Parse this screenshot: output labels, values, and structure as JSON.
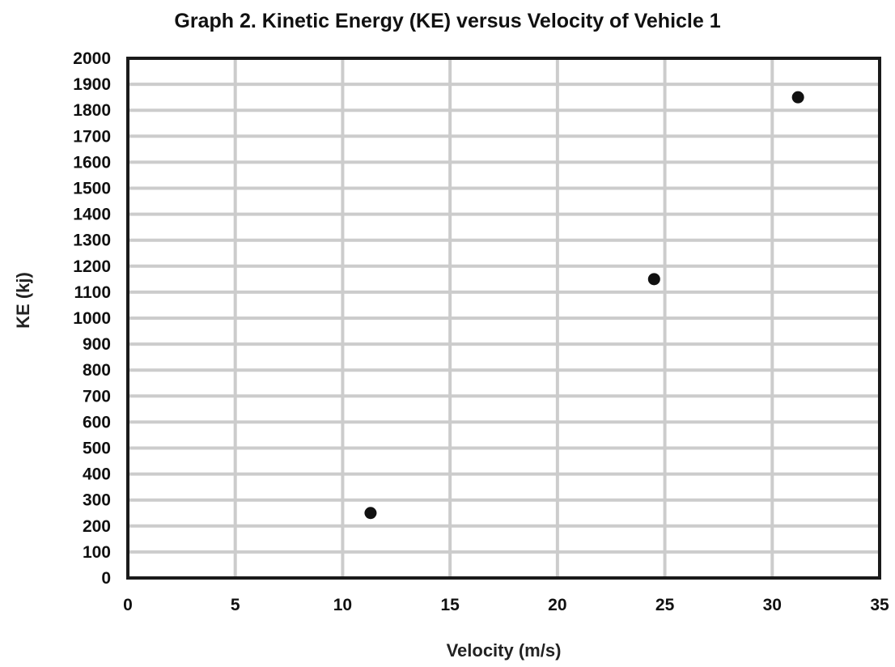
{
  "chart_data": {
    "type": "scatter",
    "title": "Graph 2. Kinetic Energy (KE) versus Velocity of Vehicle 1",
    "xlabel": "Velocity (m/s)",
    "ylabel": "KE (kj)",
    "xlim": [
      0,
      35
    ],
    "ylim": [
      0,
      2000
    ],
    "x_ticks": [
      0,
      5,
      10,
      15,
      20,
      25,
      30,
      35
    ],
    "y_ticks": [
      0,
      100,
      200,
      300,
      400,
      500,
      600,
      700,
      800,
      900,
      1000,
      1100,
      1200,
      1300,
      1400,
      1500,
      1600,
      1700,
      1800,
      1900,
      2000
    ],
    "grid": true,
    "points": [
      {
        "x": 11.3,
        "y": 250
      },
      {
        "x": 24.5,
        "y": 1150
      },
      {
        "x": 31.2,
        "y": 1850
      }
    ],
    "colors": {
      "point": "#111111",
      "grid": "#cccccc",
      "frame": "#1a1a1a"
    }
  }
}
